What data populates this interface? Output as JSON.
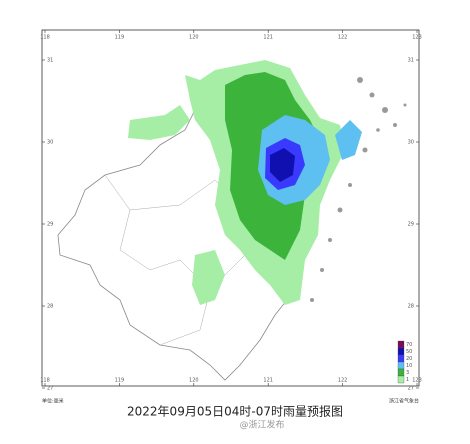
{
  "map": {
    "title": "2022年09月05日04时-07时雨量预报图",
    "lon_ticks": [
      118,
      119,
      120,
      121,
      122,
      123
    ],
    "lat_ticks": [
      31,
      30,
      29,
      28,
      27
    ],
    "legend": {
      "levels": [
        70,
        50,
        20,
        10,
        3,
        1
      ],
      "colors": [
        "#7a0a5a",
        "#1010b0",
        "#3a3aff",
        "#5ec0f0",
        "#3cb43c",
        "#a6eea6"
      ]
    },
    "unit": "单位:毫米",
    "source": "浙江省气象台",
    "watermark": "@浙江发布"
  }
}
